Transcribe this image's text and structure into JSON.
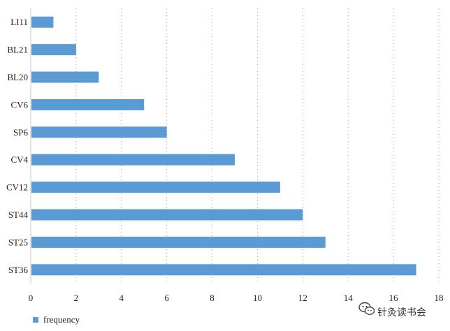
{
  "chart_data": {
    "type": "bar",
    "orientation": "horizontal",
    "categories": [
      "LI11",
      "BL21",
      "BL20",
      "CV6",
      "SP6",
      "CV4",
      "CV12",
      "ST44",
      "ST25",
      "ST36"
    ],
    "series": [
      {
        "name": "frequency",
        "values": [
          1,
          2,
          3,
          5,
          6,
          9,
          11,
          12,
          13,
          17
        ],
        "color": "#5b9bd5"
      }
    ],
    "xlim": [
      0,
      18
    ],
    "x_ticks": [
      0,
      2,
      4,
      6,
      8,
      10,
      12,
      14,
      16,
      18
    ],
    "grid": "vertical dotted",
    "legend_position": "bottom-left"
  },
  "watermark": {
    "text": "针灸读书会",
    "icon": "wechat-icon"
  }
}
